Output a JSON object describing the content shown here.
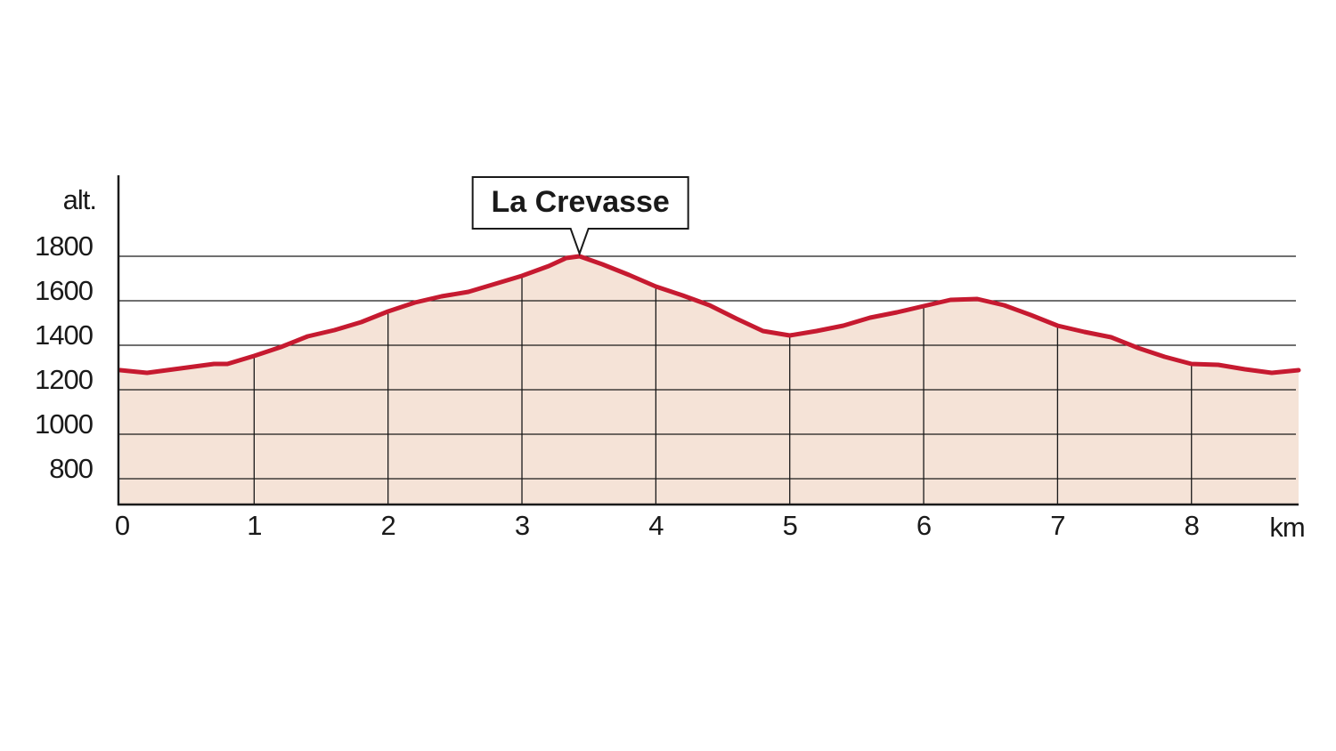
{
  "chart_data": {
    "type": "area",
    "x_label": "km",
    "y_label": "alt.",
    "x": [
      0,
      0.2,
      0.5,
      0.7,
      0.8,
      1.0,
      1.2,
      1.4,
      1.6,
      1.8,
      2.0,
      2.2,
      2.4,
      2.6,
      2.8,
      3.0,
      3.2,
      3.33,
      3.43,
      3.6,
      3.8,
      4.0,
      4.2,
      4.4,
      4.6,
      4.8,
      5.0,
      5.2,
      5.4,
      5.6,
      5.8,
      6.0,
      6.2,
      6.4,
      6.6,
      6.8,
      7.0,
      7.2,
      7.4,
      7.6,
      7.8,
      8.0,
      8.2,
      8.4,
      8.6,
      8.8
    ],
    "values": [
      1288,
      1276,
      1300,
      1316,
      1316,
      1352,
      1392,
      1440,
      1468,
      1504,
      1552,
      1592,
      1620,
      1640,
      1676,
      1712,
      1756,
      1792,
      1800,
      1764,
      1716,
      1664,
      1624,
      1580,
      1520,
      1464,
      1444,
      1464,
      1488,
      1524,
      1548,
      1576,
      1604,
      1608,
      1580,
      1536,
      1488,
      1460,
      1436,
      1388,
      1348,
      1316,
      1312,
      1292,
      1276,
      1288
    ],
    "color": "#c61a30",
    "fill_color": "#f5e3d7",
    "xlim": [
      0,
      8.8
    ],
    "ylim": [
      684,
      2164
    ],
    "xticks": [
      0,
      1,
      2,
      3,
      4,
      5,
      6,
      7,
      8
    ],
    "yticks": [
      800,
      1000,
      1200,
      1400,
      1600,
      1800
    ],
    "grid": true,
    "annotation": {
      "text": "La Crevasse",
      "x": 3.43,
      "y": 1800
    }
  }
}
